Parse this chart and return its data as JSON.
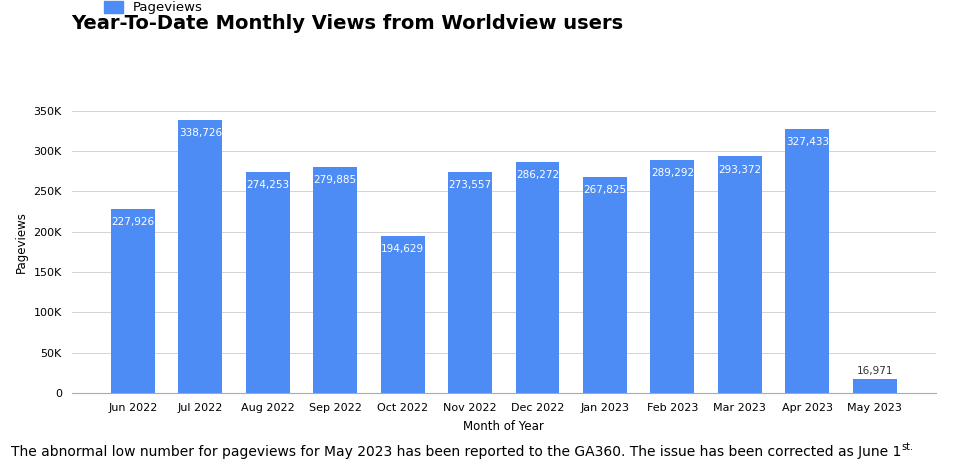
{
  "title": "Year-To-Date Monthly Views from Worldview users",
  "categories": [
    "Jun 2022",
    "Jul 2022",
    "Aug 2022",
    "Sep 2022",
    "Oct 2022",
    "Nov 2022",
    "Dec 2022",
    "Jan 2023",
    "Feb 2023",
    "Mar 2023",
    "Apr 2023",
    "May 2023"
  ],
  "values": [
    227926,
    338726,
    274253,
    279885,
    194629,
    273557,
    286272,
    267825,
    289292,
    293372,
    327433,
    16971
  ],
  "bar_color": "#4d8cf5",
  "xlabel": "Month of Year",
  "ylabel": "Pageviews",
  "ylim": [
    0,
    375000
  ],
  "yticks": [
    0,
    50000,
    100000,
    150000,
    200000,
    250000,
    300000,
    350000
  ],
  "ytick_labels": [
    "0",
    "50K",
    "100K",
    "150K",
    "200K",
    "250K",
    "300K",
    "350K"
  ],
  "legend_label": "Pageviews",
  "footnote_main": "The abnormal low number for pageviews for May 2023 has been reported to the GA360. The issue has been corrected as June 1",
  "footnote_sup": "st",
  "footnote_end": ".",
  "background_color": "#ffffff",
  "grid_color": "#cccccc",
  "title_fontsize": 14,
  "label_fontsize": 8.5,
  "tick_fontsize": 8,
  "bar_label_fontsize": 7.5,
  "footnote_fontsize": 10
}
